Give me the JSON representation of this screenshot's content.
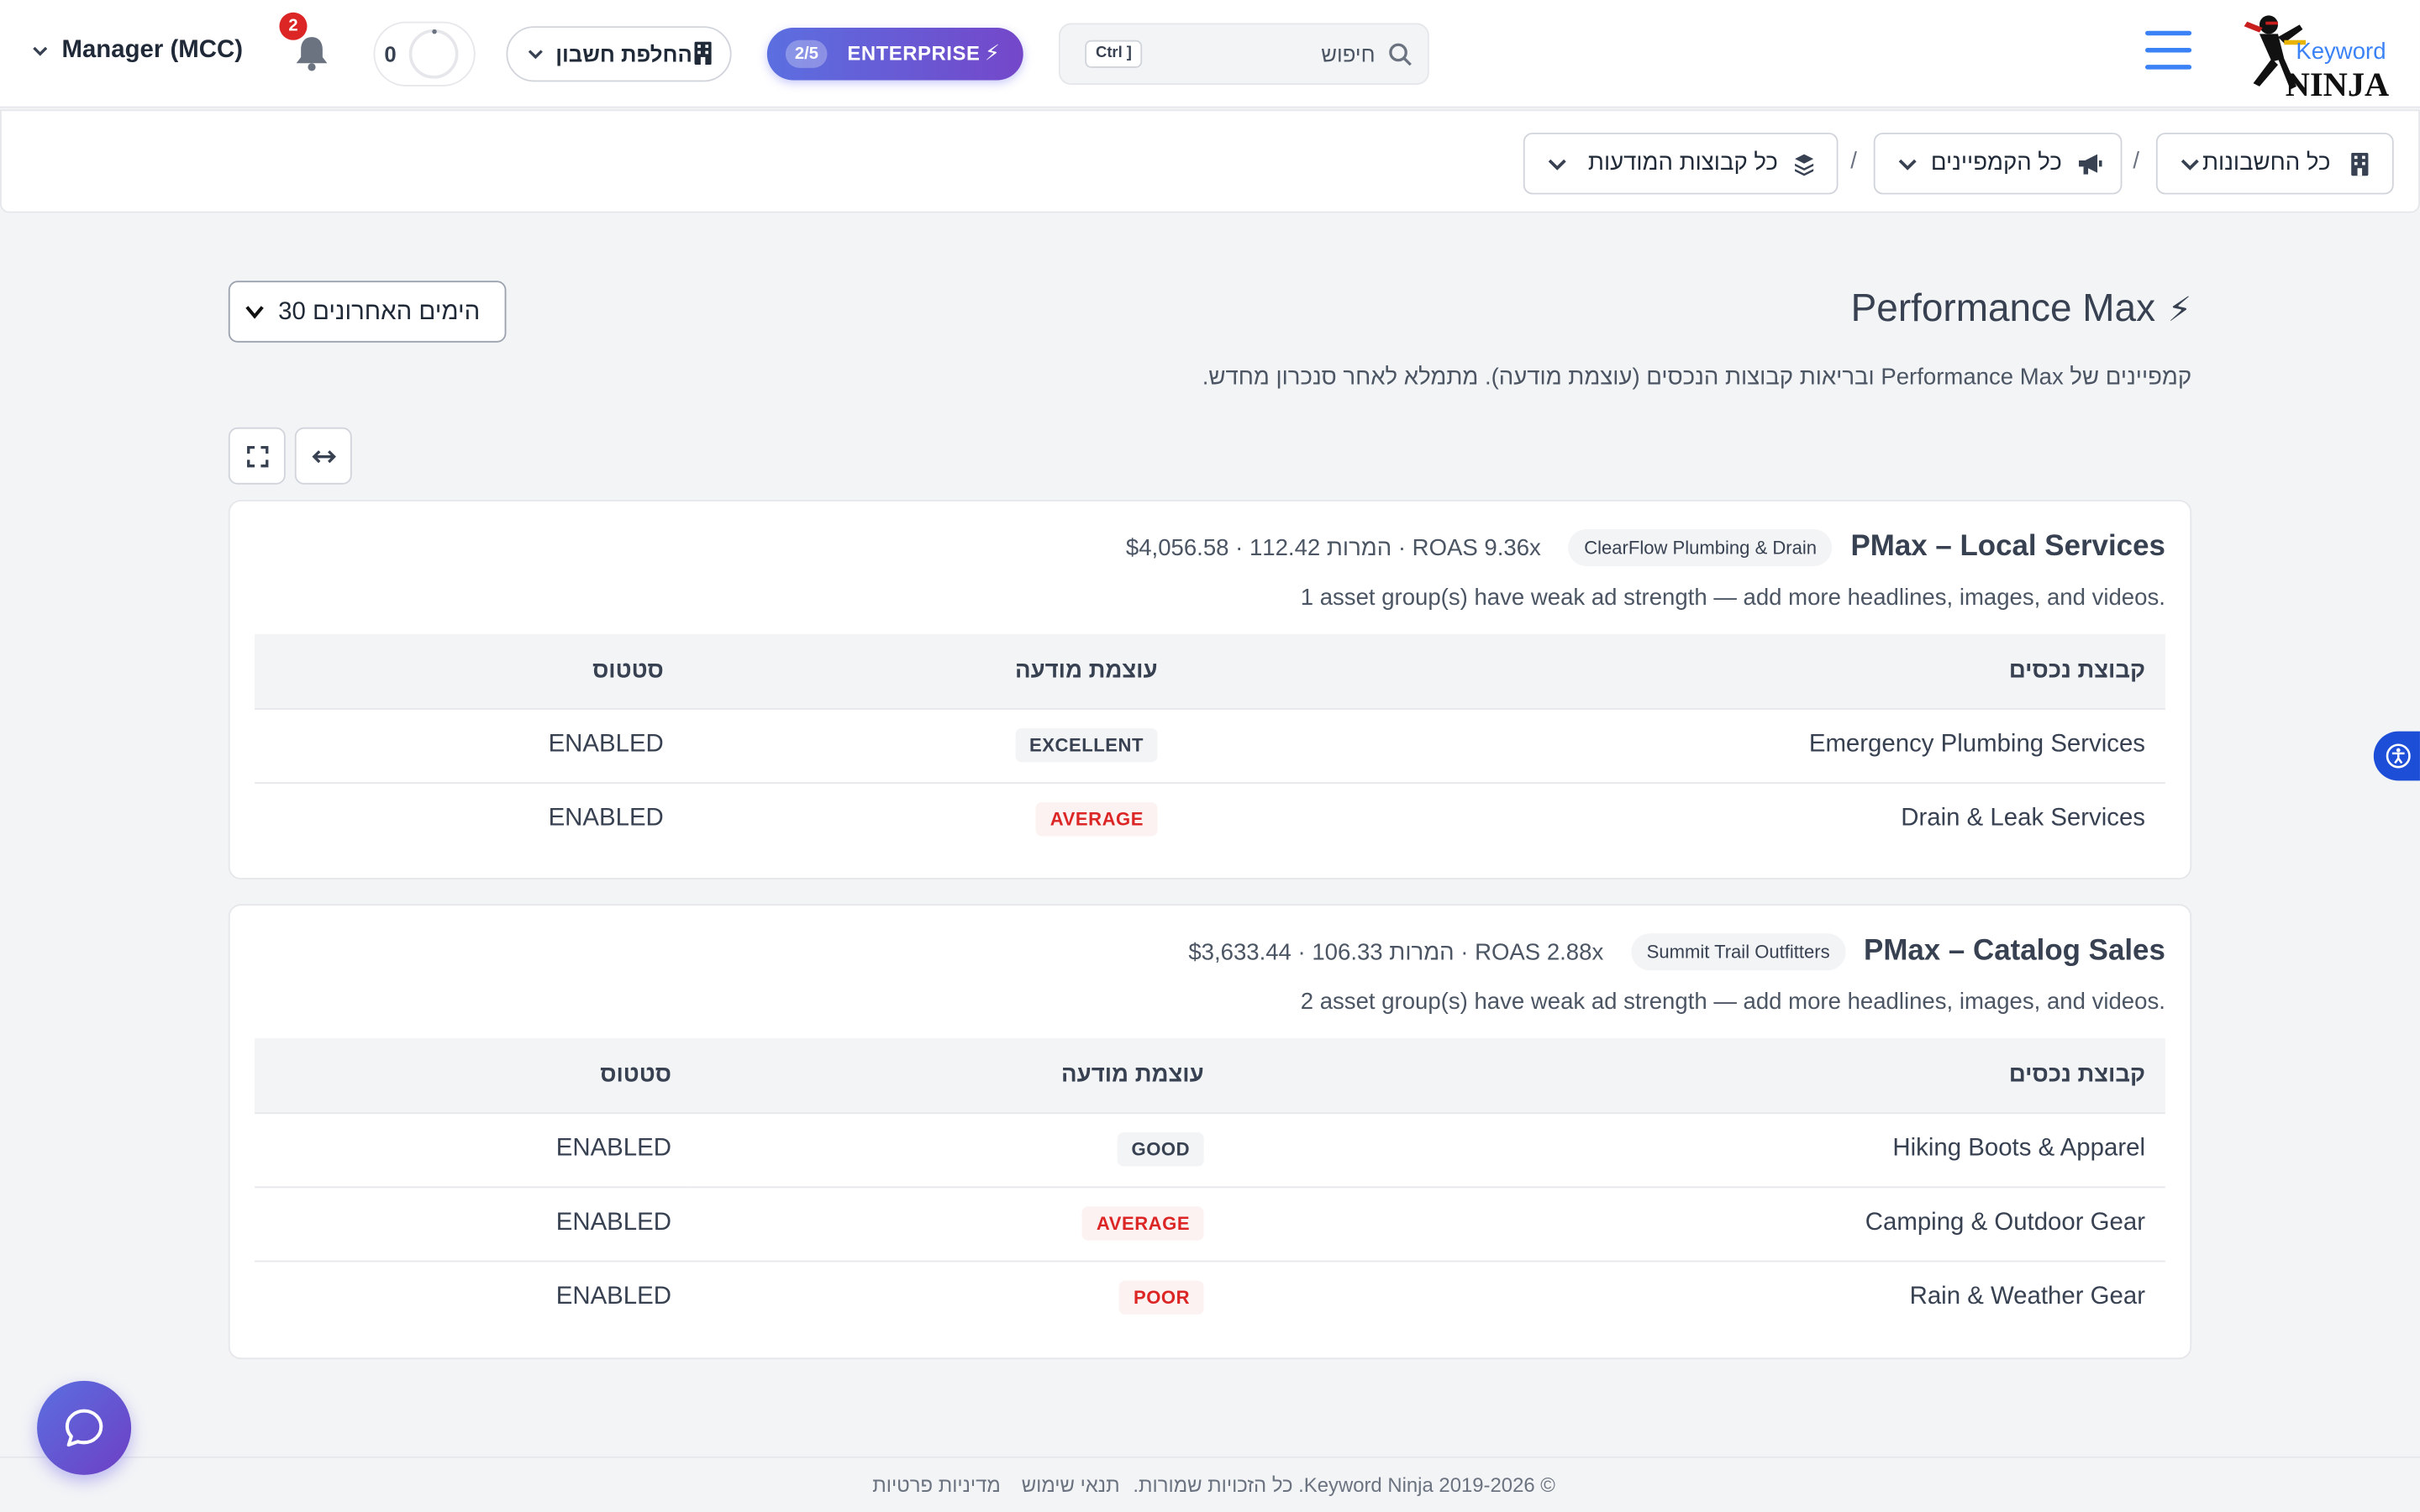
{
  "header": {
    "logo_text_top": "Keyword",
    "logo_text_bottom": "NINJA",
    "search_placeholder": "חיפוש",
    "search_shortcut": "Ctrl ]",
    "plan_badge_count": "2/5",
    "plan_badge_label": "ENTERPRISE",
    "account_switch_label": "החלפת חשבון",
    "credits_count": "0",
    "notification_count": "2",
    "manager_label": "Manager (MCC)"
  },
  "breadcrumb": {
    "accounts": "כל החשבונות",
    "campaigns": "כל הקמפיינים",
    "ad_groups": "כל קבוצות המודעות",
    "separator": "/"
  },
  "page": {
    "title": "Performance Max",
    "subtitle": "קמפיינים של Performance Max ובריאות קבוצות הנכסים (עוצמת מודעה). מתמלא לאחר סנכרון מחדש.",
    "date_range": "30 הימים האחרונים"
  },
  "table_headers": {
    "asset_group": "קבוצת נכסים",
    "ad_strength": "עוצמת מודעה",
    "status": "סטטוס"
  },
  "campaigns": [
    {
      "name": "PMax – Local Services",
      "account": "ClearFlow Plumbing & Drain",
      "metrics": "$4,056.58 · 112.42 המרות · ROAS 9.36x",
      "warning": "1 asset group(s) have weak ad strength — add more headlines, images, and videos.",
      "rows": [
        {
          "name": "Emergency Plumbing Services",
          "strength": "EXCELLENT",
          "status": "ENABLED"
        },
        {
          "name": "Drain & Leak Services",
          "strength": "AVERAGE",
          "status": "ENABLED"
        }
      ]
    },
    {
      "name": "PMax – Catalog Sales",
      "account": "Summit Trail Outfitters",
      "metrics": "$3,633.44 · 106.33 המרות · ROAS 2.88x",
      "warning": "2 asset group(s) have weak ad strength — add more headlines, images, and videos.",
      "rows": [
        {
          "name": "Hiking Boots & Apparel",
          "strength": "GOOD",
          "status": "ENABLED"
        },
        {
          "name": "Camping & Outdoor Gear",
          "strength": "AVERAGE",
          "status": "ENABLED"
        },
        {
          "name": "Rain & Weather Gear",
          "strength": "POOR",
          "status": "ENABLED"
        }
      ]
    }
  ],
  "footer": {
    "copyright": "© 2019-2026 Keyword Ninja. כל הזכויות שמורות.",
    "terms": "תנאי שימוש",
    "privacy": "מדיניות פרטיות"
  },
  "colors": {
    "accent": "#3b82f6",
    "brand_gradient_start": "#5b6fe0",
    "brand_gradient_end": "#7447c9",
    "weak_strength": "#dc2626"
  }
}
